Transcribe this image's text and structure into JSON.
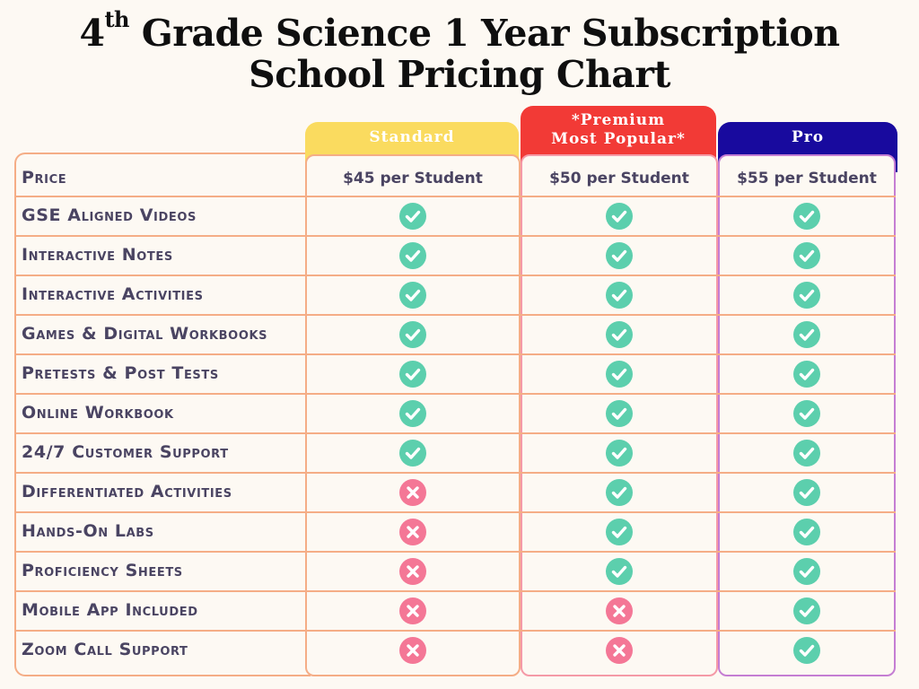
{
  "title": {
    "line1_pre": "4",
    "line1_sup": "th",
    "line1_post": " Grade Science 1 Year Subscription",
    "line2": "School Pricing Chart"
  },
  "plans": [
    {
      "name": "Standard",
      "name_line2": "",
      "price": "$45 per Student",
      "color": "#fadb5f",
      "text_color": "#ffffff",
      "border": "#f5ad86"
    },
    {
      "name": "*Premium",
      "name_line2": "Most Popular*",
      "price": "$50 per Student",
      "color": "#f23a36",
      "text_color": "#ffffff",
      "border": "#f59aa7"
    },
    {
      "name": "Pro",
      "name_line2": "",
      "price": "$55 per Student",
      "color": "#180a9e",
      "text_color": "#ffffff",
      "border": "#c57ed3"
    }
  ],
  "price_label": "Price",
  "features": [
    {
      "label": "GSE Aligned Videos",
      "values": [
        true,
        true,
        true
      ]
    },
    {
      "label": "Interactive Notes",
      "values": [
        true,
        true,
        true
      ]
    },
    {
      "label": "Interactive Activities",
      "values": [
        true,
        true,
        true
      ]
    },
    {
      "label": "Games & Digital Workbooks",
      "values": [
        true,
        true,
        true
      ]
    },
    {
      "label": "Pretests & Post Tests",
      "values": [
        true,
        true,
        true
      ]
    },
    {
      "label": "Online Workbook",
      "values": [
        true,
        true,
        true
      ]
    },
    {
      "label": "24/7 Customer Support",
      "values": [
        true,
        true,
        true
      ]
    },
    {
      "label": "Differentiated Activities",
      "values": [
        false,
        true,
        true
      ]
    },
    {
      "label": "Hands-On Labs",
      "values": [
        false,
        true,
        true
      ]
    },
    {
      "label": "Proficiency Sheets",
      "values": [
        false,
        true,
        true
      ]
    },
    {
      "label": "Mobile App Included",
      "values": [
        false,
        false,
        true
      ]
    },
    {
      "label": "Zoom Call Support",
      "values": [
        false,
        false,
        true
      ]
    }
  ],
  "colors": {
    "check": "#5ccfad",
    "cross": "#f47796",
    "label_text": "#4a4462",
    "line": "#f5ad86"
  },
  "icons": {
    "included": "check-icon",
    "excluded": "x-icon"
  }
}
